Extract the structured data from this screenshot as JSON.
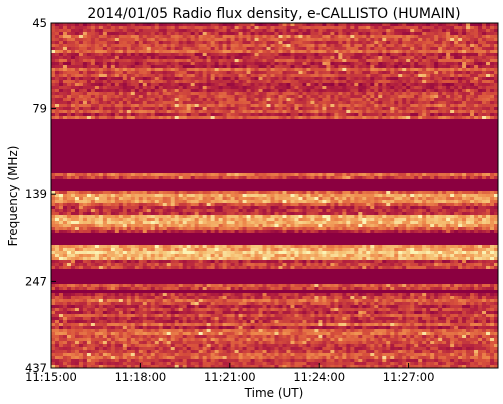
{
  "chart_data": {
    "type": "heatmap",
    "title": "2014/01/05  Radio flux density, e-CALLISTO (HUMAIN)",
    "xlabel": "Time (UT)",
    "ylabel": "Frequency (MHz)",
    "x_ticks": [
      "11:15:00",
      "11:18:00",
      "11:21:00",
      "11:24:00",
      "11:27:00"
    ],
    "y_ticks": [
      "45",
      "79",
      "139",
      "247",
      "437"
    ],
    "xlim": [
      "11:15:00",
      "11:30:00"
    ],
    "ylim": [
      437,
      45
    ],
    "y_scale": "log",
    "colormap": [
      "#8b0040",
      "#b3203f",
      "#d9533c",
      "#ee8a4c",
      "#f6c174",
      "#fbf3b4"
    ],
    "saturated_bands_mhz": [
      [
        84,
        120
      ],
      [
        127,
        137
      ],
      [
        180,
        195
      ],
      [
        228,
        253
      ],
      [
        262,
        268
      ]
    ],
    "bright_bands_mhz": [
      [
        140,
        148
      ],
      [
        160,
        172
      ],
      [
        196,
        216
      ]
    ],
    "frame_color": "#000000"
  }
}
